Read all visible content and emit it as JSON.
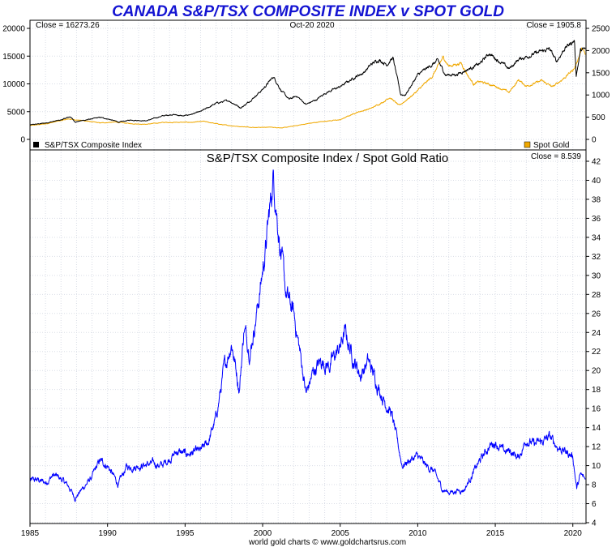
{
  "title": "CANADA S&P/TSX COMPOSITE INDEX v SPOT GOLD",
  "credit": "world gold charts © www.goldchartsrus.com",
  "top_panel": {
    "close_left": "Close = 16273.26",
    "date": "Oct-20  2020",
    "close_right": "Close = 1905.8",
    "legend_left": "S&P/TSX Composite Index",
    "legend_right": "Spot Gold"
  },
  "bottom_panel": {
    "title": "S&P/TSX Composite Index  /  Spot Gold Ratio",
    "close": "Close = 8.539"
  },
  "colors": {
    "tsx": "#000000",
    "gold": "#f0a800",
    "ratio": "#0000ff",
    "title": "#1414d2"
  },
  "chart_data": [
    {
      "type": "line",
      "x_ticks": [
        "1985",
        "1990",
        "1995",
        "2000",
        "2005",
        "2010",
        "2015",
        "2020"
      ],
      "xlim": [
        1985.0,
        2020.85
      ],
      "y_left_ticks": [
        "0",
        "5000",
        "10000",
        "15000",
        "20000"
      ],
      "ylim_left": [
        0,
        20000
      ],
      "y_right_ticks": [
        "0",
        "500",
        "1000",
        "1500",
        "2000",
        "2500"
      ],
      "ylim_right": [
        0,
        2500
      ],
      "grid": true,
      "series": [
        {
          "name": "S&P/TSX Composite Index",
          "axis": "left",
          "color": "#000000",
          "points": [
            [
              1985.0,
              2600
            ],
            [
              1986.0,
              2950
            ],
            [
              1987.0,
              3500
            ],
            [
              1987.6,
              4100
            ],
            [
              1987.9,
              3150
            ],
            [
              1988.5,
              3450
            ],
            [
              1989.5,
              3950
            ],
            [
              1990.0,
              3700
            ],
            [
              1990.75,
              3100
            ],
            [
              1991.5,
              3500
            ],
            [
              1992.5,
              3350
            ],
            [
              1993.5,
              4200
            ],
            [
              1994.2,
              4500
            ],
            [
              1994.9,
              4200
            ],
            [
              1995.5,
              4600
            ],
            [
              1996.0,
              5000
            ],
            [
              1997.0,
              6500
            ],
            [
              1997.8,
              7000
            ],
            [
              1998.6,
              5700
            ],
            [
              1999.0,
              6500
            ],
            [
              2000.0,
              9000
            ],
            [
              2000.7,
              11300
            ],
            [
              2001.2,
              8800
            ],
            [
              2001.7,
              7200
            ],
            [
              2002.2,
              7800
            ],
            [
              2002.8,
              6300
            ],
            [
              2003.5,
              7200
            ],
            [
              2004.0,
              8300
            ],
            [
              2005.0,
              9500
            ],
            [
              2006.0,
              11300
            ],
            [
              2006.5,
              12000
            ],
            [
              2007.0,
              13500
            ],
            [
              2007.5,
              14400
            ],
            [
              2008.0,
              13500
            ],
            [
              2008.4,
              14700
            ],
            [
              2008.9,
              8100
            ],
            [
              2009.2,
              8000
            ],
            [
              2010.0,
              11600
            ],
            [
              2011.3,
              14200
            ],
            [
              2011.8,
              11600
            ],
            [
              2012.5,
              11700
            ],
            [
              2013.3,
              12700
            ],
            [
              2014.0,
              13600
            ],
            [
              2014.6,
              15500
            ],
            [
              2015.9,
              12700
            ],
            [
              2016.5,
              14400
            ],
            [
              2017.5,
              15400
            ],
            [
              2018.5,
              16300
            ],
            [
              2018.95,
              14000
            ],
            [
              2019.5,
              16500
            ],
            [
              2020.1,
              17800
            ],
            [
              2020.22,
              11600
            ],
            [
              2020.5,
              16000
            ],
            [
              2020.8,
              16273
            ]
          ]
        },
        {
          "name": "Spot Gold",
          "axis": "right",
          "color": "#f0a800",
          "points": [
            [
              1985.0,
              310
            ],
            [
              1986.0,
              350
            ],
            [
              1987.5,
              460
            ],
            [
              1988.5,
              420
            ],
            [
              1989.5,
              370
            ],
            [
              1990.5,
              390
            ],
            [
              1991.5,
              355
            ],
            [
              1992.5,
              340
            ],
            [
              1993.5,
              380
            ],
            [
              1994.5,
              385
            ],
            [
              1995.5,
              385
            ],
            [
              1996.2,
              405
            ],
            [
              1996.9,
              360
            ],
            [
              1997.5,
              325
            ],
            [
              1998.5,
              290
            ],
            [
              1999.5,
              270
            ],
            [
              2000.5,
              275
            ],
            [
              2001.3,
              260
            ],
            [
              2002.0,
              300
            ],
            [
              2003.0,
              360
            ],
            [
              2004.0,
              410
            ],
            [
              2005.0,
              440
            ],
            [
              2006.0,
              600
            ],
            [
              2007.0,
              700
            ],
            [
              2007.8,
              850
            ],
            [
              2008.2,
              950
            ],
            [
              2008.8,
              760
            ],
            [
              2009.5,
              950
            ],
            [
              2010.0,
              1100
            ],
            [
              2010.9,
              1400
            ],
            [
              2011.65,
              1850
            ],
            [
              2012.0,
              1650
            ],
            [
              2012.8,
              1720
            ],
            [
              2013.3,
              1400
            ],
            [
              2013.6,
              1250
            ],
            [
              2014.0,
              1300
            ],
            [
              2015.0,
              1200
            ],
            [
              2015.9,
              1060
            ],
            [
              2016.5,
              1340
            ],
            [
              2017.0,
              1200
            ],
            [
              2018.0,
              1320
            ],
            [
              2018.7,
              1180
            ],
            [
              2019.5,
              1400
            ],
            [
              2020.1,
              1600
            ],
            [
              2020.6,
              2050
            ],
            [
              2020.8,
              1906
            ]
          ]
        }
      ]
    },
    {
      "type": "line",
      "title": "S&P/TSX Composite Index  /  Spot Gold Ratio",
      "x_ticks": [
        "1985",
        "1990",
        "1995",
        "2000",
        "2005",
        "2010",
        "2015",
        "2020"
      ],
      "xlim": [
        1985.0,
        2020.85
      ],
      "y_ticks": [
        "4",
        "6",
        "8",
        "10",
        "12",
        "14",
        "16",
        "18",
        "20",
        "22",
        "24",
        "26",
        "28",
        "30",
        "32",
        "34",
        "36",
        "38",
        "40",
        "42"
      ],
      "ylim": [
        4,
        42
      ],
      "grid": true,
      "series": [
        {
          "name": "S&P/TSX Composite Index  /  Spot Gold Ratio",
          "color": "#0000ff",
          "points": [
            [
              1985.0,
              8.4
            ],
            [
              1985.5,
              8.5
            ],
            [
              1986.0,
              8.2
            ],
            [
              1986.5,
              9.0
            ],
            [
              1987.0,
              8.6
            ],
            [
              1987.5,
              7.8
            ],
            [
              1987.9,
              6.6
            ],
            [
              1988.5,
              7.8
            ],
            [
              1989.0,
              8.8
            ],
            [
              1989.5,
              10.5
            ],
            [
              1990.0,
              10.0
            ],
            [
              1990.7,
              8.0
            ],
            [
              1991.2,
              9.8
            ],
            [
              1992.0,
              10.0
            ],
            [
              1993.0,
              10.2
            ],
            [
              1993.5,
              10.0
            ],
            [
              1994.5,
              11.5
            ],
            [
              1995.0,
              11.2
            ],
            [
              1996.0,
              11.5
            ],
            [
              1996.5,
              12.5
            ],
            [
              1997.0,
              15.0
            ],
            [
              1997.5,
              20.0
            ],
            [
              1998.0,
              23.0
            ],
            [
              1998.5,
              18.0
            ],
            [
              1998.8,
              24.5
            ],
            [
              1999.2,
              22.0
            ],
            [
              1999.5,
              25.0
            ],
            [
              1999.8,
              28.0
            ],
            [
              2000.2,
              33.0
            ],
            [
              2000.7,
              40.5
            ],
            [
              2000.9,
              37.0
            ],
            [
              2001.2,
              32.0
            ],
            [
              2001.5,
              28.0
            ],
            [
              2002.0,
              26.0
            ],
            [
              2002.5,
              21.0
            ],
            [
              2002.8,
              17.5
            ],
            [
              2003.3,
              20.0
            ],
            [
              2003.8,
              21.0
            ],
            [
              2004.3,
              20.5
            ],
            [
              2005.0,
              22.5
            ],
            [
              2005.3,
              24.0
            ],
            [
              2005.8,
              21.5
            ],
            [
              2006.3,
              19.5
            ],
            [
              2006.8,
              21.0
            ],
            [
              2007.3,
              19.0
            ],
            [
              2007.8,
              17.0
            ],
            [
              2008.3,
              15.5
            ],
            [
              2008.5,
              14.0
            ],
            [
              2009.0,
              10.0
            ],
            [
              2009.4,
              10.5
            ],
            [
              2010.0,
              11.0
            ],
            [
              2010.5,
              10.0
            ],
            [
              2011.0,
              9.5
            ],
            [
              2011.6,
              7.5
            ],
            [
              2012.0,
              7.2
            ],
            [
              2013.0,
              7.5
            ],
            [
              2013.5,
              9.0
            ],
            [
              2014.0,
              10.5
            ],
            [
              2014.6,
              12.0
            ],
            [
              2015.0,
              12.5
            ],
            [
              2015.5,
              11.5
            ],
            [
              2016.0,
              11.5
            ],
            [
              2016.5,
              10.8
            ],
            [
              2017.0,
              12.8
            ],
            [
              2017.5,
              12.2
            ],
            [
              2018.0,
              12.5
            ],
            [
              2018.5,
              13.0
            ],
            [
              2019.0,
              12.0
            ],
            [
              2019.5,
              11.5
            ],
            [
              2020.0,
              11.0
            ],
            [
              2020.25,
              7.6
            ],
            [
              2020.5,
              9.0
            ],
            [
              2020.8,
              8.54
            ]
          ]
        }
      ]
    }
  ]
}
